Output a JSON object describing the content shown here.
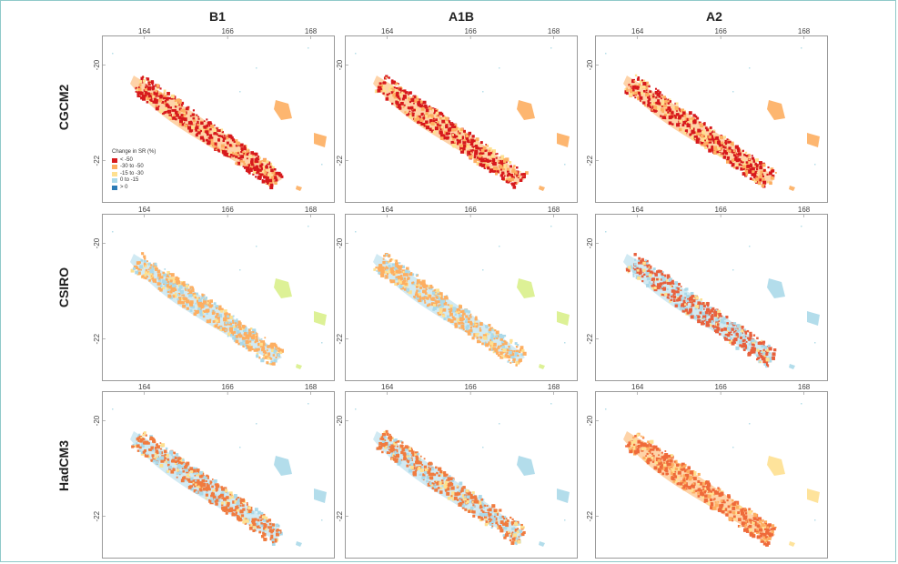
{
  "columns": [
    "B1",
    "A1B",
    "A2"
  ],
  "rows": [
    "CGCM2",
    "CSIRO",
    "HadCM3"
  ],
  "axes": {
    "lon_ticks": [
      "164",
      "166",
      "168"
    ],
    "lat_ticks": [
      "-20",
      "-22"
    ],
    "lon_range": [
      163.0,
      168.6
    ],
    "lat_range": [
      -19.4,
      -22.9
    ]
  },
  "legend": {
    "title": "Change in SR (%)",
    "items": [
      {
        "label": "< -50",
        "color": "#d7191c"
      },
      {
        "label": "-30 to -50",
        "color": "#fdae61"
      },
      {
        "label": "-15 to -30",
        "color": "#fee090"
      },
      {
        "label": "0 to -15",
        "color": "#abd9e9"
      },
      {
        "label": "> 0",
        "color": "#2c7bb6"
      }
    ]
  },
  "panels": [
    {
      "model": "CGCM2",
      "scenario": "B1",
      "dominant": "#d7191c",
      "secondary": "#fdae61",
      "islands": "#fdae61"
    },
    {
      "model": "CGCM2",
      "scenario": "A1B",
      "dominant": "#d7191c",
      "secondary": "#fdae61",
      "islands": "#fdae61"
    },
    {
      "model": "CGCM2",
      "scenario": "A2",
      "dominant": "#d7191c",
      "secondary": "#fdae61",
      "islands": "#fdae61"
    },
    {
      "model": "CSIRO",
      "scenario": "B1",
      "dominant": "#fdae61",
      "secondary": "#abd9e9",
      "islands": "#d9ef8b"
    },
    {
      "model": "CSIRO",
      "scenario": "A1B",
      "dominant": "#fdae61",
      "secondary": "#abd9e9",
      "islands": "#d9ef8b"
    },
    {
      "model": "CSIRO",
      "scenario": "A2",
      "dominant": "#e8603c",
      "secondary": "#abd9e9",
      "islands": "#abd9e9"
    },
    {
      "model": "HadCM3",
      "scenario": "B1",
      "dominant": "#f07b3f",
      "secondary": "#abd9e9",
      "islands": "#abd9e9"
    },
    {
      "model": "HadCM3",
      "scenario": "A1B",
      "dominant": "#f07b3f",
      "secondary": "#abd9e9",
      "islands": "#abd9e9"
    },
    {
      "model": "HadCM3",
      "scenario": "A2",
      "dominant": "#ef6a3a",
      "secondary": "#fdae61",
      "islands": "#fee090"
    }
  ]
}
